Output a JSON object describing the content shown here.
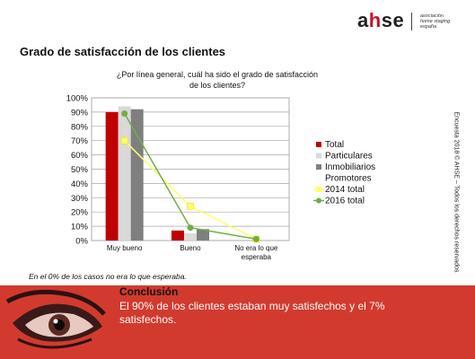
{
  "logo": {
    "brand_prefix": "a",
    "brand_h": "h",
    "brand_suffix": "se",
    "line1": "asociación",
    "line2": "home staging",
    "line3": "españa"
  },
  "page_title": "Grado de satisfacción de los clientes",
  "side_note": "Encuesta 2018 © AHSE – Todos los derechos reservados",
  "footnote": "En el 0% de los casos no era lo que esperaba.",
  "conclusion": {
    "title": "Conclusión",
    "text": "El 90% de los clientes estaban muy satisfechos y el 7% satisfechos."
  },
  "colors": {
    "banner": "#d23a2e",
    "total": "#c00000",
    "particulares": "#d9d9d9",
    "inmobiliarios": "#7f7f7f",
    "y2014": "#ffff66",
    "y2016": "#70ad47"
  },
  "chart_data": {
    "type": "bar",
    "title_lines": [
      "¿Por línea general, cuál ha sido el grado de satisfacción",
      "de los clientes?"
    ],
    "categories": [
      [
        "Muy bueno"
      ],
      [
        "Bueno"
      ],
      [
        "No era lo que",
        "esperaba"
      ]
    ],
    "y_ticks": [
      "0%",
      "10%",
      "20%",
      "30%",
      "40%",
      "50%",
      "60%",
      "70%",
      "80%",
      "90%",
      "100%"
    ],
    "ylim": [
      0,
      100
    ],
    "grid": true,
    "legend_position": "right",
    "bar_series": [
      {
        "name": "Total",
        "color": "#c00000",
        "values": [
          90,
          7,
          0
        ]
      },
      {
        "name": "Particulares",
        "color": "#d9d9d9",
        "values": [
          94,
          5,
          0
        ]
      },
      {
        "name": "Inmobiliarios Promotores",
        "legend_lines": [
          "Inmobiliarios",
          "Promotores"
        ],
        "color": "#7f7f7f",
        "values": [
          92,
          8,
          0
        ]
      }
    ],
    "line_series": [
      {
        "name": "2014 total",
        "color": "#ffff66",
        "marker": "square",
        "values": [
          70,
          24,
          1
        ]
      },
      {
        "name": "2016 total",
        "color": "#70ad47",
        "marker": "diamond",
        "values": [
          89,
          9,
          1
        ]
      }
    ]
  }
}
